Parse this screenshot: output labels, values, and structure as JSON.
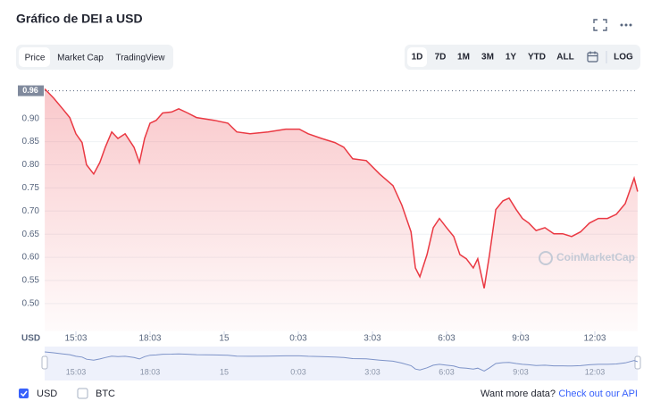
{
  "header": {
    "title": "Gráfico de DEI a USD",
    "tabs": [
      "Price",
      "Market Cap",
      "TradingView"
    ],
    "ranges": [
      "1D",
      "7D",
      "1M",
      "3M",
      "1Y",
      "YTD",
      "ALL"
    ],
    "scale_button": "LOG"
  },
  "chart_data": {
    "type": "area",
    "grid": true,
    "unit_label": "USD",
    "watermark": "CoinMarketCap",
    "price_marker": 0.96,
    "x": [
      13.79,
      14.15,
      14.51,
      14.8,
      15.05,
      15.3,
      15.48,
      15.77,
      16.02,
      16.24,
      16.5,
      16.75,
      17.04,
      17.4,
      17.62,
      17.83,
      18.05,
      18.3,
      18.56,
      18.92,
      19.21,
      19.57,
      19.93,
      20.65,
      21.2,
      21.56,
      22.1,
      22.82,
      23.54,
      24.09,
      24.45,
      24.99,
      25.53,
      25.89,
      26.25,
      26.8,
      27.34,
      27.88,
      28.24,
      28.61,
      28.79,
      28.97,
      29.26,
      29.51,
      29.76,
      30.05,
      30.34,
      30.59,
      30.85,
      31.13,
      31.31,
      31.57,
      31.79,
      32.04,
      32.33,
      32.58,
      32.87,
      33.12,
      33.38,
      33.67,
      34.03,
      34.39,
      34.75,
      35.11,
      35.47,
      35.83,
      36.19,
      36.56,
      36.92,
      37.28,
      37.64,
      37.78
    ],
    "series": [
      {
        "name": "USD",
        "color": "#ea3943",
        "values": [
          0.964,
          0.944,
          0.921,
          0.902,
          0.867,
          0.848,
          0.8,
          0.78,
          0.805,
          0.838,
          0.871,
          0.857,
          0.867,
          0.838,
          0.805,
          0.857,
          0.89,
          0.896,
          0.912,
          0.914,
          0.921,
          0.912,
          0.902,
          0.896,
          0.89,
          0.871,
          0.867,
          0.871,
          0.877,
          0.877,
          0.867,
          0.857,
          0.848,
          0.838,
          0.813,
          0.809,
          0.78,
          0.755,
          0.713,
          0.655,
          0.577,
          0.558,
          0.606,
          0.664,
          0.684,
          0.664,
          0.645,
          0.606,
          0.597,
          0.577,
          0.597,
          0.533,
          0.606,
          0.703,
          0.722,
          0.728,
          0.703,
          0.684,
          0.674,
          0.658,
          0.664,
          0.651,
          0.651,
          0.645,
          0.655,
          0.674,
          0.684,
          0.684,
          0.693,
          0.716,
          0.771,
          0.742
        ]
      }
    ],
    "xlim": [
      13.785,
      37.785
    ],
    "xticks": [
      {
        "value": 15.05,
        "label": "15:03"
      },
      {
        "value": 18.05,
        "label": "18:03"
      },
      {
        "value": 21.05,
        "label": "15"
      },
      {
        "value": 24.05,
        "label": "0:03"
      },
      {
        "value": 27.05,
        "label": "3:03"
      },
      {
        "value": 30.05,
        "label": "6:03"
      },
      {
        "value": 33.05,
        "label": "9:03"
      },
      {
        "value": 36.05,
        "label": "12:03"
      }
    ],
    "ylim": [
      0.44,
      0.965
    ],
    "yticks": [
      {
        "value": 0.5,
        "label": "0.50"
      },
      0.55,
      {
        "value": 0.6,
        "label": "0.60"
      },
      0.65,
      {
        "value": 0.7,
        "label": "0.70"
      },
      0.75,
      {
        "value": 0.8,
        "label": "0.80"
      },
      0.85,
      {
        "value": 0.9,
        "label": "0.90"
      }
    ]
  },
  "footer": {
    "other_currency": "BTC",
    "prompt": "Want more data?",
    "link": "Check out our API"
  }
}
